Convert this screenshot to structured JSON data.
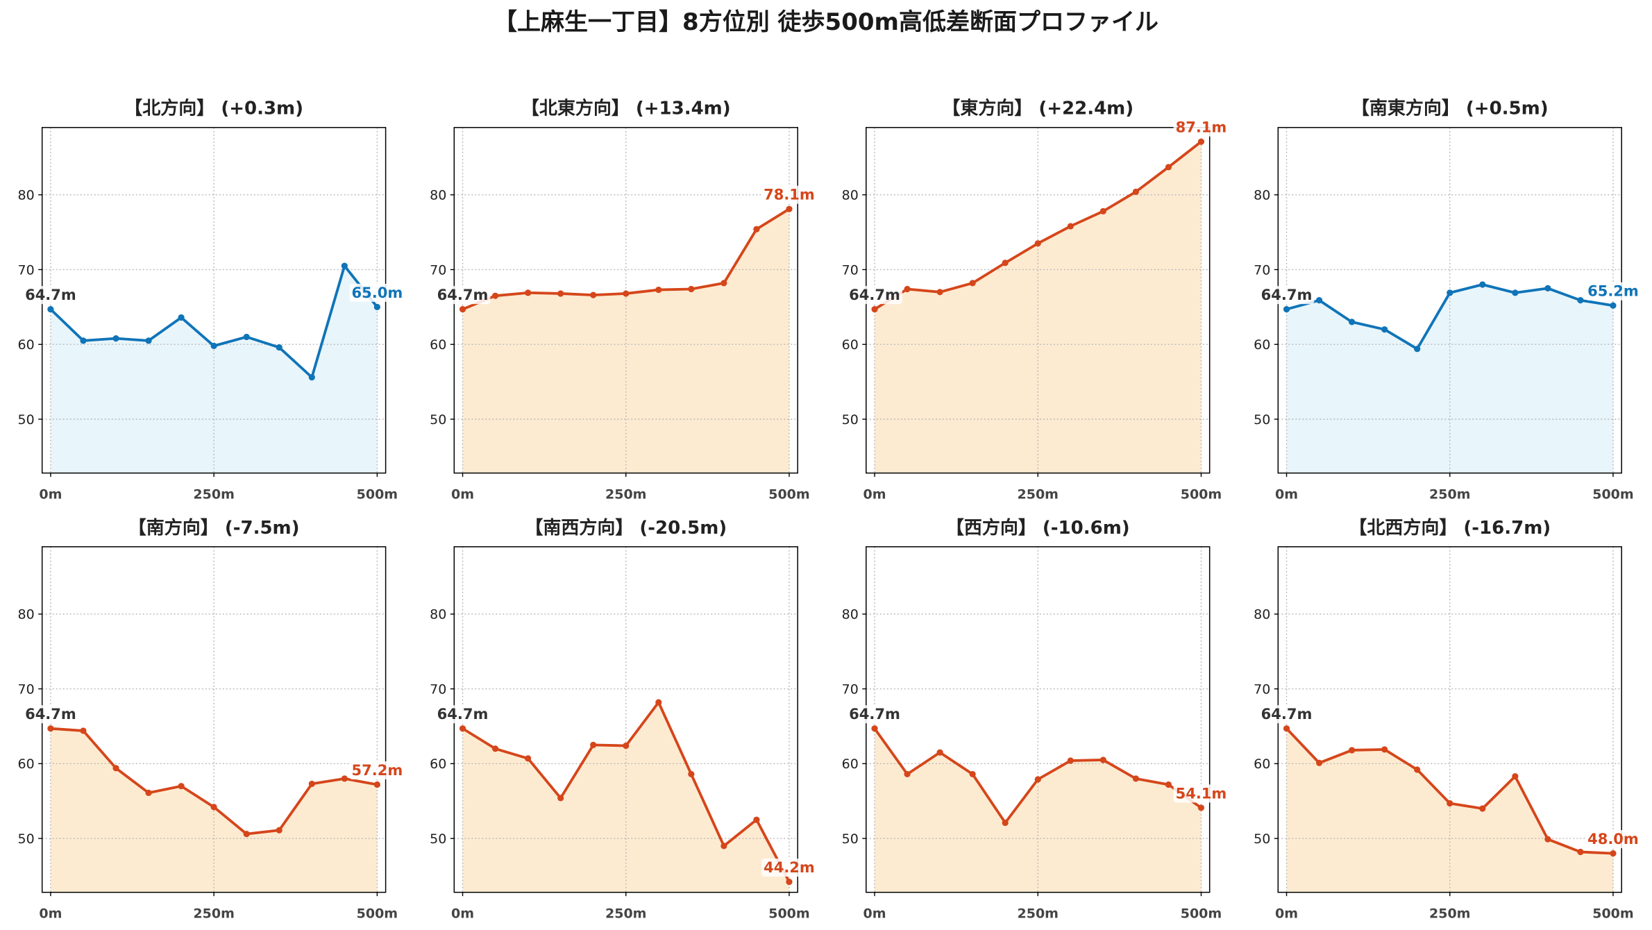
{
  "figure_title": "【上麻生一丁目】8方位別 徒歩500m高低差断面プロファイル",
  "colors": {
    "background": "#ffffff",
    "start_label": "#333333",
    "grid": "#b8b8b8",
    "axes": "#000000",
    "label_box": "#ffffff"
  },
  "chart_data": [
    {
      "type": "area",
      "title": "【北方向】 (+0.3m)",
      "color": "#0f74b8",
      "fill": "#e8f5fb",
      "x": [
        0,
        50,
        100,
        150,
        200,
        250,
        300,
        350,
        400,
        450,
        500
      ],
      "y": [
        64.7,
        60.5,
        60.8,
        60.5,
        63.6,
        59.8,
        61.0,
        59.6,
        55.6,
        70.5,
        65.0
      ],
      "start_label": "64.7m",
      "end_label": "65.0m",
      "xlim": [
        -13,
        513
      ],
      "ylim": [
        42.8,
        89.0
      ],
      "xticks": [
        0,
        250,
        500
      ],
      "xtick_labels": [
        "0m",
        "250m",
        "500m"
      ],
      "yticks": [
        50,
        60,
        70,
        80
      ],
      "ytick_labels": [
        "50",
        "60",
        "70",
        "80"
      ],
      "grid": true
    },
    {
      "type": "area",
      "title": "【北東方向】 (+13.4m)",
      "color": "#d5461b",
      "fill": "#fdebd1",
      "x": [
        0,
        50,
        100,
        150,
        200,
        250,
        300,
        350,
        400,
        450,
        500
      ],
      "y": [
        64.7,
        66.5,
        66.9,
        66.8,
        66.6,
        66.8,
        67.3,
        67.4,
        68.2,
        75.4,
        78.1
      ],
      "start_label": "64.7m",
      "end_label": "78.1m",
      "xlim": [
        -13,
        513
      ],
      "ylim": [
        42.8,
        89.0
      ],
      "xticks": [
        0,
        250,
        500
      ],
      "xtick_labels": [
        "0m",
        "250m",
        "500m"
      ],
      "yticks": [
        50,
        60,
        70,
        80
      ],
      "ytick_labels": [
        "50",
        "60",
        "70",
        "80"
      ],
      "grid": true
    },
    {
      "type": "area",
      "title": "【東方向】 (+22.4m)",
      "color": "#d5461b",
      "fill": "#fdebd1",
      "x": [
        0,
        50,
        100,
        150,
        200,
        250,
        300,
        350,
        400,
        450,
        500
      ],
      "y": [
        64.7,
        67.4,
        67.0,
        68.2,
        70.9,
        73.5,
        75.8,
        77.8,
        80.4,
        83.7,
        87.1
      ],
      "start_label": "64.7m",
      "end_label": "87.1m",
      "xlim": [
        -13,
        513
      ],
      "ylim": [
        42.8,
        89.0
      ],
      "xticks": [
        0,
        250,
        500
      ],
      "xtick_labels": [
        "0m",
        "250m",
        "500m"
      ],
      "yticks": [
        50,
        60,
        70,
        80
      ],
      "ytick_labels": [
        "50",
        "60",
        "70",
        "80"
      ],
      "grid": true
    },
    {
      "type": "area",
      "title": "【南東方向】 (+0.5m)",
      "color": "#0f74b8",
      "fill": "#e8f5fb",
      "x": [
        0,
        50,
        100,
        150,
        200,
        250,
        300,
        350,
        400,
        450,
        500
      ],
      "y": [
        64.7,
        65.9,
        63.0,
        62.0,
        59.4,
        66.9,
        68.0,
        66.9,
        67.5,
        65.9,
        65.2
      ],
      "start_label": "64.7m",
      "end_label": "65.2m",
      "xlim": [
        -13,
        513
      ],
      "ylim": [
        42.8,
        89.0
      ],
      "xticks": [
        0,
        250,
        500
      ],
      "xtick_labels": [
        "0m",
        "250m",
        "500m"
      ],
      "yticks": [
        50,
        60,
        70,
        80
      ],
      "ytick_labels": [
        "50",
        "60",
        "70",
        "80"
      ],
      "grid": true
    },
    {
      "type": "area",
      "title": "【南方向】 (-7.5m)",
      "color": "#d5461b",
      "fill": "#fdebd1",
      "x": [
        0,
        50,
        100,
        150,
        200,
        250,
        300,
        350,
        400,
        450,
        500
      ],
      "y": [
        64.7,
        64.4,
        59.4,
        56.1,
        57.0,
        54.2,
        50.6,
        51.1,
        57.3,
        58.0,
        57.2
      ],
      "start_label": "64.7m",
      "end_label": "57.2m",
      "xlim": [
        -13,
        513
      ],
      "ylim": [
        42.8,
        89.0
      ],
      "xticks": [
        0,
        250,
        500
      ],
      "xtick_labels": [
        "0m",
        "250m",
        "500m"
      ],
      "yticks": [
        50,
        60,
        70,
        80
      ],
      "ytick_labels": [
        "50",
        "60",
        "70",
        "80"
      ],
      "grid": true
    },
    {
      "type": "area",
      "title": "【南西方向】 (-20.5m)",
      "color": "#d5461b",
      "fill": "#fdebd1",
      "x": [
        0,
        50,
        100,
        150,
        200,
        250,
        300,
        350,
        400,
        450,
        500
      ],
      "y": [
        64.7,
        62.0,
        60.7,
        55.4,
        62.5,
        62.4,
        68.2,
        58.6,
        49.0,
        52.5,
        44.2
      ],
      "start_label": "64.7m",
      "end_label": "44.2m",
      "xlim": [
        -13,
        513
      ],
      "ylim": [
        42.8,
        89.0
      ],
      "xticks": [
        0,
        250,
        500
      ],
      "xtick_labels": [
        "0m",
        "250m",
        "500m"
      ],
      "yticks": [
        50,
        60,
        70,
        80
      ],
      "ytick_labels": [
        "50",
        "60",
        "70",
        "80"
      ],
      "grid": true
    },
    {
      "type": "area",
      "title": "【西方向】 (-10.6m)",
      "color": "#d5461b",
      "fill": "#fdebd1",
      "x": [
        0,
        50,
        100,
        150,
        200,
        250,
        300,
        350,
        400,
        450,
        500
      ],
      "y": [
        64.7,
        58.6,
        61.5,
        58.6,
        52.1,
        57.9,
        60.4,
        60.5,
        58.0,
        57.2,
        54.1
      ],
      "start_label": "64.7m",
      "end_label": "54.1m",
      "xlim": [
        -13,
        513
      ],
      "ylim": [
        42.8,
        89.0
      ],
      "xticks": [
        0,
        250,
        500
      ],
      "xtick_labels": [
        "0m",
        "250m",
        "500m"
      ],
      "yticks": [
        50,
        60,
        70,
        80
      ],
      "ytick_labels": [
        "50",
        "60",
        "70",
        "80"
      ],
      "grid": true
    },
    {
      "type": "area",
      "title": "【北西方向】 (-16.7m)",
      "color": "#d5461b",
      "fill": "#fdebd1",
      "x": [
        0,
        50,
        100,
        150,
        200,
        250,
        300,
        350,
        400,
        450,
        500
      ],
      "y": [
        64.7,
        60.1,
        61.8,
        61.9,
        59.2,
        54.7,
        54.0,
        58.3,
        49.9,
        48.2,
        48.0
      ],
      "start_label": "64.7m",
      "end_label": "48.0m",
      "xlim": [
        -13,
        513
      ],
      "ylim": [
        42.8,
        89.0
      ],
      "xticks": [
        0,
        250,
        500
      ],
      "xtick_labels": [
        "0m",
        "250m",
        "500m"
      ],
      "yticks": [
        50,
        60,
        70,
        80
      ],
      "ytick_labels": [
        "50",
        "60",
        "70",
        "80"
      ],
      "grid": true
    }
  ]
}
